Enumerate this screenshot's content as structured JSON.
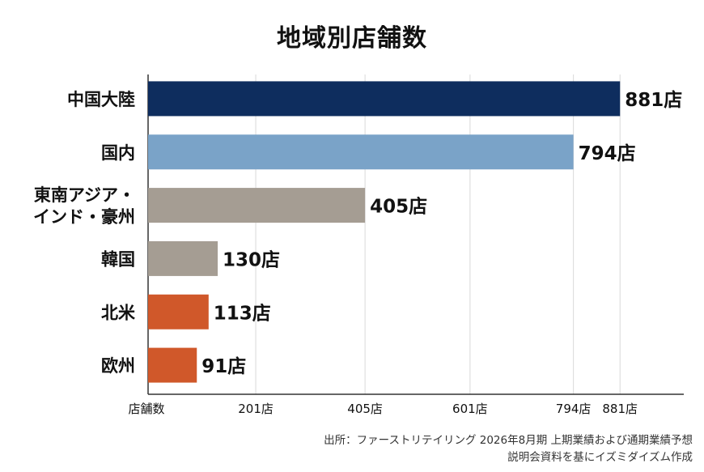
{
  "chart_data": {
    "type": "bar",
    "orientation": "horizontal",
    "title": "地域別店舗数",
    "categories": [
      "中国大陸",
      "国内",
      "東南アジア・インド・豪州",
      "韓国",
      "北米",
      "欧州"
    ],
    "category_lines": [
      [
        "中国大陸"
      ],
      [
        "国内"
      ],
      [
        "東南アジア・",
        "インド・豪州"
      ],
      [
        "韓国"
      ],
      [
        "北米"
      ],
      [
        "欧州"
      ]
    ],
    "values": [
      881,
      794,
      405,
      130,
      113,
      91
    ],
    "data_labels": [
      "881店",
      "794店",
      "405店",
      "130店",
      "113店",
      "91店"
    ],
    "bar_colors": [
      "#0e2d5e",
      "#7aa3c8",
      "#a59d93",
      "#a59d93",
      "#d0582a",
      "#d0582a"
    ],
    "x_axis_label": "店舗数",
    "x_tick_values": [
      0,
      201,
      405,
      601,
      794,
      881
    ],
    "x_tick_labels": [
      "店舗数",
      "201店",
      "405店",
      "601店",
      "794店",
      "881店"
    ],
    "xlim": [
      0,
      1000
    ],
    "grid": "vertical"
  },
  "source": {
    "line1": "出所：ファーストリテイリング 2026年8月期 上期業績および通期業績予想",
    "line2": "説明会資料を基にイズミダイズム作成"
  }
}
